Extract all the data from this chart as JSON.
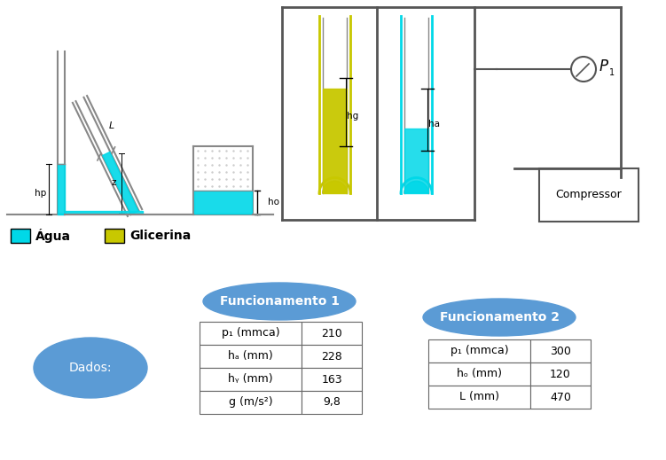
{
  "background_color": "#ffffff",
  "agua_color": "#00d8e8",
  "glicerina_color": "#c8c800",
  "tube_color": "#888888",
  "frame_color": "#555555",
  "agua_label": "Água",
  "glicerina_label": "Glicerina",
  "dados_label": "Dados:",
  "func1_label": "Funcionamento 1",
  "func2_label": "Funcionamento 2",
  "table1_rows": [
    [
      "p₁ (mmca)",
      "210"
    ],
    [
      "hₐ (mm)",
      "228"
    ],
    [
      "hᵧ (mm)",
      "163"
    ],
    [
      "g (m/s²)",
      "9,8"
    ]
  ],
  "table2_rows": [
    [
      "p₁ (mmca)",
      "300"
    ],
    [
      "hₒ (mm)",
      "120"
    ],
    [
      "L (mm)",
      "470"
    ]
  ],
  "ellipse_color": "#5b9bd5",
  "ellipse_text_color": "#ffffff",
  "compressor_label": "Compressor",
  "p1_label": "P",
  "hp_label": "hp",
  "z_label": "z",
  "L_label": "L",
  "ho_label": "ho",
  "hg_label": "hg",
  "ha_label": "ha"
}
